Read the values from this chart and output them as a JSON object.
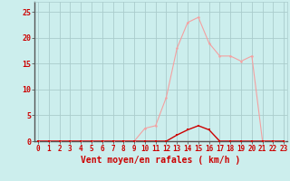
{
  "x": [
    0,
    1,
    2,
    3,
    4,
    5,
    6,
    7,
    8,
    9,
    10,
    11,
    12,
    13,
    14,
    15,
    16,
    17,
    18,
    19,
    20,
    21,
    22,
    23
  ],
  "y_rafales": [
    0,
    0,
    0,
    0,
    0,
    0,
    0,
    0,
    0,
    0,
    2.5,
    3,
    8.5,
    18,
    23,
    24,
    19,
    16.5,
    16.5,
    15.5,
    16.5,
    0,
    0,
    0
  ],
  "y_moyen": [
    0,
    0,
    0,
    0,
    0,
    0,
    0,
    0,
    0,
    0,
    0,
    0,
    0,
    1.2,
    2.2,
    3,
    2.2,
    0,
    0,
    0,
    0,
    0,
    0,
    0
  ],
  "bg_color": "#cceeed",
  "grid_color": "#aacccc",
  "line_color_rafales": "#f4a0a0",
  "line_color_moyen": "#cc0000",
  "marker_color_rafales": "#f4a0a0",
  "marker_color_moyen": "#cc0000",
  "xlabel": "Vent moyen/en rafales ( km/h )",
  "yticks": [
    0,
    5,
    10,
    15,
    20,
    25
  ],
  "xticks": [
    0,
    1,
    2,
    3,
    4,
    5,
    6,
    7,
    8,
    9,
    10,
    11,
    12,
    13,
    14,
    15,
    16,
    17,
    18,
    19,
    20,
    21,
    22,
    23
  ],
  "ylim": [
    0,
    27
  ],
  "xlim": [
    -0.3,
    23.3
  ],
  "axis_color": "#cc0000",
  "tick_label_fontsize": 5.5,
  "xlabel_fontsize": 7
}
